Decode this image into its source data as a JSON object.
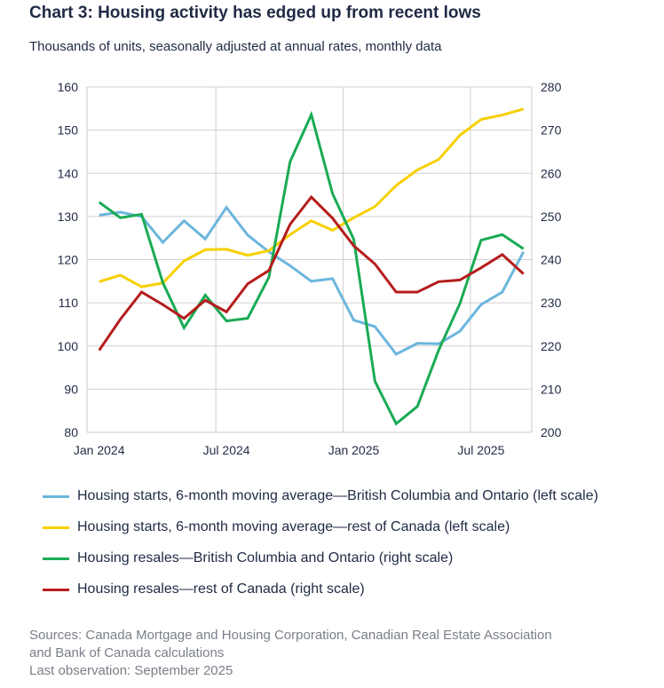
{
  "title": "Chart 3: Housing activity has edged up from recent lows",
  "subtitle": "Thousands of units, seasonally adjusted at annual rates, monthly data",
  "chart_data": {
    "type": "line",
    "x": [
      "2024-01",
      "2024-02",
      "2024-03",
      "2024-04",
      "2024-05",
      "2024-06",
      "2024-07",
      "2024-08",
      "2024-09",
      "2024-10",
      "2024-11",
      "2024-12",
      "2025-01",
      "2025-02",
      "2025-03",
      "2025-04",
      "2025-05",
      "2025-06",
      "2025-07",
      "2025-08",
      "2025-09"
    ],
    "x_tick_labels": [
      {
        "index": 0,
        "label": "Jan 2024"
      },
      {
        "index": 6,
        "label": "Jul 2024"
      },
      {
        "index": 12,
        "label": "Jan 2025"
      },
      {
        "index": 18,
        "label": "Jul 2025"
      }
    ],
    "y_left": {
      "range": [
        80,
        160
      ],
      "ticks": [
        "80",
        "90",
        "100",
        "110",
        "120",
        "130",
        "140",
        "150",
        "160"
      ]
    },
    "y_right": {
      "range": [
        200,
        280
      ],
      "ticks": [
        "200",
        "210",
        "220",
        "230",
        "240",
        "250",
        "260",
        "270",
        "280"
      ]
    },
    "grid": true,
    "legend_placement": "bottom",
    "series": [
      {
        "name": "Housing starts, 6-month moving average—British Columbia and Ontario (left scale)",
        "axis": "left",
        "color": "#6cb6dd",
        "values": [
          130.3,
          131,
          130,
          124,
          129,
          124.8,
          132.1,
          125.7,
          121.8,
          118.6,
          115,
          115.6,
          106,
          104.5,
          98.1,
          100.6,
          100.5,
          103.4,
          109.6,
          112.5,
          121.8
        ]
      },
      {
        "name": "Housing starts, 6-month moving average—rest of Canada (left scale)",
        "axis": "left",
        "color": "#f7d000",
        "values": [
          114.9,
          116.4,
          113.7,
          114.6,
          119.7,
          122.3,
          122.4,
          121,
          122.1,
          125.8,
          129,
          126.8,
          129.7,
          132.3,
          137.2,
          140.8,
          143.2,
          148.8,
          152.5,
          153.5,
          154.9
        ]
      },
      {
        "name": "Housing resales—British Columbia and Ontario (right scale)",
        "axis": "right",
        "color": "#1aab54",
        "values": [
          253.3,
          249.7,
          250.5,
          234.7,
          224.2,
          231.8,
          225.8,
          226.4,
          235.9,
          262.7,
          273.6,
          255.3,
          244.7,
          211.8,
          202,
          206,
          219,
          229.8,
          244.5,
          245.8,
          242.5
        ]
      },
      {
        "name": "Housing resales—rest of Canada (right scale)",
        "axis": "right",
        "color": "#b51c1c",
        "values": [
          219,
          226.2,
          232.5,
          229.6,
          226.4,
          230.6,
          227.9,
          234.4,
          237.5,
          248.2,
          254.5,
          249.6,
          243.2,
          239,
          232.5,
          232.5,
          234.9,
          235.3,
          238.1,
          241.2,
          236.7
        ]
      }
    ]
  },
  "legend": [
    "Housing starts, 6-month moving average—British Columbia and Ontario (left scale)",
    "Housing starts, 6-month moving average—rest of Canada (left scale)",
    "Housing resales—British Columbia and Ontario (right scale)",
    "Housing resales—rest of Canada (right scale)"
  ],
  "sources": {
    "line1": "Sources: Canada Mortgage and Housing Corporation, Canadian Real Estate Association",
    "line2": "and Bank of Canada calculations",
    "line3": "Last observation: September 2025"
  }
}
